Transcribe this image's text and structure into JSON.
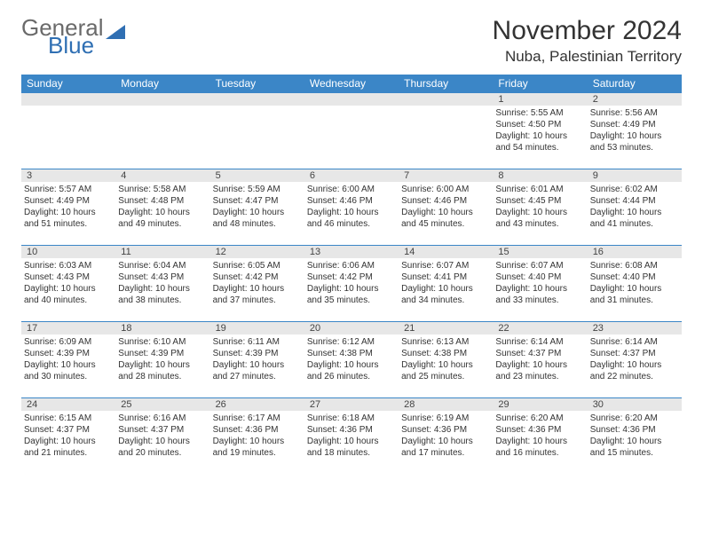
{
  "brand": {
    "word1": "General",
    "word2": "Blue",
    "shape_color": "#2f6fb3"
  },
  "header": {
    "title": "November 2024",
    "location": "Nuba, Palestinian Territory"
  },
  "colors": {
    "header_bg": "#3b86c7",
    "daynum_bg": "#e7e7e7",
    "rule": "#3b86c7"
  },
  "weekdays": [
    "Sunday",
    "Monday",
    "Tuesday",
    "Wednesday",
    "Thursday",
    "Friday",
    "Saturday"
  ],
  "weeks": [
    [
      {
        "n": "",
        "lines": []
      },
      {
        "n": "",
        "lines": []
      },
      {
        "n": "",
        "lines": []
      },
      {
        "n": "",
        "lines": []
      },
      {
        "n": "",
        "lines": []
      },
      {
        "n": "1",
        "lines": [
          "Sunrise: 5:55 AM",
          "Sunset: 4:50 PM",
          "Daylight: 10 hours and 54 minutes."
        ]
      },
      {
        "n": "2",
        "lines": [
          "Sunrise: 5:56 AM",
          "Sunset: 4:49 PM",
          "Daylight: 10 hours and 53 minutes."
        ]
      }
    ],
    [
      {
        "n": "3",
        "lines": [
          "Sunrise: 5:57 AM",
          "Sunset: 4:49 PM",
          "Daylight: 10 hours and 51 minutes."
        ]
      },
      {
        "n": "4",
        "lines": [
          "Sunrise: 5:58 AM",
          "Sunset: 4:48 PM",
          "Daylight: 10 hours and 49 minutes."
        ]
      },
      {
        "n": "5",
        "lines": [
          "Sunrise: 5:59 AM",
          "Sunset: 4:47 PM",
          "Daylight: 10 hours and 48 minutes."
        ]
      },
      {
        "n": "6",
        "lines": [
          "Sunrise: 6:00 AM",
          "Sunset: 4:46 PM",
          "Daylight: 10 hours and 46 minutes."
        ]
      },
      {
        "n": "7",
        "lines": [
          "Sunrise: 6:00 AM",
          "Sunset: 4:46 PM",
          "Daylight: 10 hours and 45 minutes."
        ]
      },
      {
        "n": "8",
        "lines": [
          "Sunrise: 6:01 AM",
          "Sunset: 4:45 PM",
          "Daylight: 10 hours and 43 minutes."
        ]
      },
      {
        "n": "9",
        "lines": [
          "Sunrise: 6:02 AM",
          "Sunset: 4:44 PM",
          "Daylight: 10 hours and 41 minutes."
        ]
      }
    ],
    [
      {
        "n": "10",
        "lines": [
          "Sunrise: 6:03 AM",
          "Sunset: 4:43 PM",
          "Daylight: 10 hours and 40 minutes."
        ]
      },
      {
        "n": "11",
        "lines": [
          "Sunrise: 6:04 AM",
          "Sunset: 4:43 PM",
          "Daylight: 10 hours and 38 minutes."
        ]
      },
      {
        "n": "12",
        "lines": [
          "Sunrise: 6:05 AM",
          "Sunset: 4:42 PM",
          "Daylight: 10 hours and 37 minutes."
        ]
      },
      {
        "n": "13",
        "lines": [
          "Sunrise: 6:06 AM",
          "Sunset: 4:42 PM",
          "Daylight: 10 hours and 35 minutes."
        ]
      },
      {
        "n": "14",
        "lines": [
          "Sunrise: 6:07 AM",
          "Sunset: 4:41 PM",
          "Daylight: 10 hours and 34 minutes."
        ]
      },
      {
        "n": "15",
        "lines": [
          "Sunrise: 6:07 AM",
          "Sunset: 4:40 PM",
          "Daylight: 10 hours and 33 minutes."
        ]
      },
      {
        "n": "16",
        "lines": [
          "Sunrise: 6:08 AM",
          "Sunset: 4:40 PM",
          "Daylight: 10 hours and 31 minutes."
        ]
      }
    ],
    [
      {
        "n": "17",
        "lines": [
          "Sunrise: 6:09 AM",
          "Sunset: 4:39 PM",
          "Daylight: 10 hours and 30 minutes."
        ]
      },
      {
        "n": "18",
        "lines": [
          "Sunrise: 6:10 AM",
          "Sunset: 4:39 PM",
          "Daylight: 10 hours and 28 minutes."
        ]
      },
      {
        "n": "19",
        "lines": [
          "Sunrise: 6:11 AM",
          "Sunset: 4:39 PM",
          "Daylight: 10 hours and 27 minutes."
        ]
      },
      {
        "n": "20",
        "lines": [
          "Sunrise: 6:12 AM",
          "Sunset: 4:38 PM",
          "Daylight: 10 hours and 26 minutes."
        ]
      },
      {
        "n": "21",
        "lines": [
          "Sunrise: 6:13 AM",
          "Sunset: 4:38 PM",
          "Daylight: 10 hours and 25 minutes."
        ]
      },
      {
        "n": "22",
        "lines": [
          "Sunrise: 6:14 AM",
          "Sunset: 4:37 PM",
          "Daylight: 10 hours and 23 minutes."
        ]
      },
      {
        "n": "23",
        "lines": [
          "Sunrise: 6:14 AM",
          "Sunset: 4:37 PM",
          "Daylight: 10 hours and 22 minutes."
        ]
      }
    ],
    [
      {
        "n": "24",
        "lines": [
          "Sunrise: 6:15 AM",
          "Sunset: 4:37 PM",
          "Daylight: 10 hours and 21 minutes."
        ]
      },
      {
        "n": "25",
        "lines": [
          "Sunrise: 6:16 AM",
          "Sunset: 4:37 PM",
          "Daylight: 10 hours and 20 minutes."
        ]
      },
      {
        "n": "26",
        "lines": [
          "Sunrise: 6:17 AM",
          "Sunset: 4:36 PM",
          "Daylight: 10 hours and 19 minutes."
        ]
      },
      {
        "n": "27",
        "lines": [
          "Sunrise: 6:18 AM",
          "Sunset: 4:36 PM",
          "Daylight: 10 hours and 18 minutes."
        ]
      },
      {
        "n": "28",
        "lines": [
          "Sunrise: 6:19 AM",
          "Sunset: 4:36 PM",
          "Daylight: 10 hours and 17 minutes."
        ]
      },
      {
        "n": "29",
        "lines": [
          "Sunrise: 6:20 AM",
          "Sunset: 4:36 PM",
          "Daylight: 10 hours and 16 minutes."
        ]
      },
      {
        "n": "30",
        "lines": [
          "Sunrise: 6:20 AM",
          "Sunset: 4:36 PM",
          "Daylight: 10 hours and 15 minutes."
        ]
      }
    ]
  ]
}
